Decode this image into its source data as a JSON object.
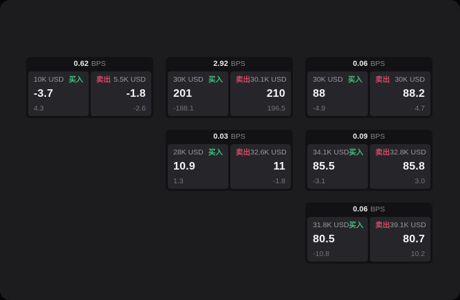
{
  "labels": {
    "bps": "BPS",
    "buy": "买入",
    "sell": "卖出"
  },
  "colors": {
    "page_background": "#1c1c1e",
    "card_background": "#121214",
    "panel_background": "#26262a",
    "buy_green": "#40bd7c",
    "sell_red": "#d04a66",
    "primary_text": "#f4f4f5",
    "muted_text": "#98989b"
  },
  "cards": [
    {
      "bps": "0.62",
      "buy": {
        "size": "10K USD",
        "main": "-3.7",
        "sub": "4.3"
      },
      "sell": {
        "size": "5.5K USD",
        "main": "-1.8",
        "sub": "-2.6"
      }
    },
    {
      "bps": "2.92",
      "buy": {
        "size": "30K USD",
        "main": "201",
        "sub": "-188.1"
      },
      "sell": {
        "size": "30.1K USD",
        "main": "210",
        "sub": "196.5"
      }
    },
    {
      "bps": "0.06",
      "buy": {
        "size": "30K USD",
        "main": "88",
        "sub": "-4.9"
      },
      "sell": {
        "size": "30K USD",
        "main": "88.2",
        "sub": "4.7"
      }
    },
    {
      "bps": "0.03",
      "buy": {
        "size": "28K USD",
        "main": "10.9",
        "sub": "1.3"
      },
      "sell": {
        "size": "32.6K USD",
        "main": "11",
        "sub": "-1.8"
      }
    },
    {
      "bps": "0.09",
      "buy": {
        "size": "34.1K USD",
        "main": "85.5",
        "sub": "-3.1"
      },
      "sell": {
        "size": "32.8K USD",
        "main": "85.8",
        "sub": "3.0"
      }
    },
    {
      "bps": "0.06",
      "buy": {
        "size": "31.8K USD",
        "main": "80.5",
        "sub": "-10.8"
      },
      "sell": {
        "size": "39.1K USD",
        "main": "80.7",
        "sub": "10.2"
      }
    }
  ]
}
